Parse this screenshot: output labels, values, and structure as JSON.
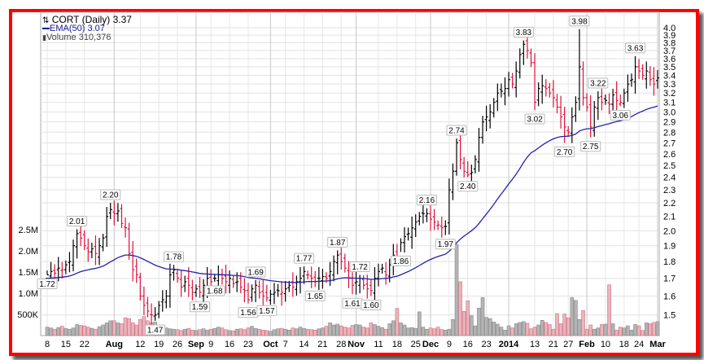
{
  "legend": {
    "symbol_line": "CORT (Daily) 3.37",
    "ema_line": "EMA(50) 3.07",
    "volume_line": "Volume 310,376"
  },
  "colors": {
    "up": "#000000",
    "down": "#e0103c",
    "ema": "#2222aa",
    "vol_up": "#b4b4b4",
    "vol_down": "#eab4bc",
    "border": "#ff0000"
  },
  "chart_data": {
    "type": "ohlc",
    "title": "CORT (Daily) 3.37",
    "price_scale": "log",
    "ylim": [
      1.4,
      4.1
    ],
    "price_ticks": [
      "4.0",
      "3.9",
      "3.8",
      "3.7",
      "3.6",
      "3.5",
      "3.4",
      "3.3",
      "3.2",
      "3.1",
      "3.0",
      "2.9",
      "2.8",
      "2.7",
      "2.6",
      "2.5",
      "2.4",
      "2.3",
      "2.2",
      "2.1",
      "2.0",
      "1.9",
      "1.8",
      "1.7",
      "1.6",
      "1.5"
    ],
    "volume_ticks": [
      {
        "label": "500K",
        "v": 500
      },
      {
        "label": "1.0M",
        "v": 1000
      },
      {
        "label": "1.5M",
        "v": 1500
      },
      {
        "label": "2.0M",
        "v": 2000
      },
      {
        "label": "2.5M",
        "v": 2500
      }
    ],
    "x_ticks": [
      {
        "i": 0,
        "label": "8"
      },
      {
        "i": 5,
        "label": "15"
      },
      {
        "i": 10,
        "label": "22"
      },
      {
        "i": 18,
        "label": "Aug",
        "bold": true
      },
      {
        "i": 25,
        "label": "12"
      },
      {
        "i": 30,
        "label": "19"
      },
      {
        "i": 35,
        "label": "26"
      },
      {
        "i": 40,
        "label": "Sep",
        "bold": true
      },
      {
        "i": 44,
        "label": "9"
      },
      {
        "i": 49,
        "label": "16"
      },
      {
        "i": 54,
        "label": "23"
      },
      {
        "i": 60,
        "label": "Oct",
        "bold": true
      },
      {
        "i": 64,
        "label": "7"
      },
      {
        "i": 69,
        "label": "14"
      },
      {
        "i": 74,
        "label": "21"
      },
      {
        "i": 79,
        "label": "28"
      },
      {
        "i": 83,
        "label": "Nov",
        "bold": true
      },
      {
        "i": 89,
        "label": "11"
      },
      {
        "i": 94,
        "label": "18"
      },
      {
        "i": 99,
        "label": "25"
      },
      {
        "i": 103,
        "label": "Dec",
        "bold": true
      },
      {
        "i": 108,
        "label": "9"
      },
      {
        "i": 113,
        "label": "16"
      },
      {
        "i": 118,
        "label": "23"
      },
      {
        "i": 124,
        "label": "2014",
        "bold": true
      },
      {
        "i": 131,
        "label": "13"
      },
      {
        "i": 136,
        "label": "21"
      },
      {
        "i": 140,
        "label": "27"
      },
      {
        "i": 145,
        "label": "Feb",
        "bold": true
      },
      {
        "i": 150,
        "label": "10"
      },
      {
        "i": 155,
        "label": "18"
      },
      {
        "i": 159,
        "label": "24"
      },
      {
        "i": 164,
        "label": "Mar",
        "bold": true
      }
    ],
    "close": [
      1.72,
      1.74,
      1.73,
      1.76,
      1.75,
      1.78,
      1.8,
      1.9,
      1.98,
      1.95,
      1.9,
      1.86,
      1.88,
      1.85,
      1.9,
      1.95,
      2.1,
      2.15,
      2.12,
      2.14,
      2.05,
      2.02,
      1.85,
      1.75,
      1.72,
      1.6,
      1.55,
      1.52,
      1.5,
      1.5,
      1.55,
      1.58,
      1.6,
      1.72,
      1.75,
      1.7,
      1.65,
      1.68,
      1.66,
      1.62,
      1.64,
      1.62,
      1.66,
      1.7,
      1.68,
      1.7,
      1.72,
      1.7,
      1.68,
      1.7,
      1.67,
      1.68,
      1.65,
      1.63,
      1.58,
      1.64,
      1.66,
      1.62,
      1.6,
      1.59,
      1.61,
      1.62,
      1.63,
      1.62,
      1.64,
      1.66,
      1.65,
      1.68,
      1.7,
      1.74,
      1.72,
      1.7,
      1.68,
      1.7,
      1.71,
      1.7,
      1.74,
      1.8,
      1.84,
      1.8,
      1.76,
      1.7,
      1.66,
      1.68,
      1.7,
      1.66,
      1.64,
      1.63,
      1.7,
      1.74,
      1.76,
      1.72,
      1.78,
      1.84,
      1.82,
      1.92,
      1.96,
      1.98,
      2.02,
      2.06,
      2.1,
      2.12,
      2.12,
      2.08,
      2.06,
      2.04,
      2.02,
      2.03,
      2.3,
      2.45,
      2.7,
      2.55,
      2.45,
      2.42,
      2.44,
      2.55,
      2.75,
      2.9,
      2.95,
      3.0,
      3.1,
      3.2,
      3.22,
      3.25,
      3.35,
      3.3,
      3.45,
      3.65,
      3.78,
      3.7,
      3.55,
      3.1,
      3.25,
      3.28,
      3.25,
      3.2,
      3.15,
      3.05,
      2.95,
      2.85,
      2.8,
      2.95,
      3.1,
      3.5,
      3.15,
      3.05,
      2.85,
      3.05,
      3.15,
      3.1,
      3.12,
      3.08,
      3.18,
      3.12,
      3.1,
      3.2,
      3.3,
      3.35,
      3.5,
      3.45,
      3.4,
      3.45,
      3.35,
      3.3,
      3.37
    ],
    "volume_k": [
      200,
      180,
      150,
      190,
      220,
      170,
      150,
      180,
      260,
      240,
      230,
      200,
      170,
      150,
      210,
      250,
      300,
      350,
      350,
      300,
      280,
      420,
      400,
      300,
      250,
      380,
      450,
      350,
      300,
      320,
      250,
      200,
      180,
      160,
      150,
      140,
      120,
      150,
      170,
      130,
      120,
      140,
      160,
      130,
      150,
      170,
      200,
      180,
      140,
      120,
      110,
      150,
      160,
      140,
      180,
      220,
      170,
      150,
      130,
      120,
      100,
      140,
      160,
      170,
      150,
      130,
      180,
      160,
      200,
      170,
      150,
      140,
      130,
      160,
      180,
      220,
      300,
      250,
      270,
      230,
      200,
      180,
      240,
      260,
      250,
      200,
      180,
      300,
      260,
      220,
      190,
      150,
      280,
      350,
      640,
      300,
      250,
      180,
      190,
      170,
      560,
      200,
      150,
      180,
      160,
      200,
      140,
      130,
      150,
      380,
      2150,
      1270,
      570,
      820,
      470,
      230,
      650,
      900,
      430,
      400,
      320,
      270,
      200,
      130,
      230,
      180,
      280,
      310,
      330,
      290,
      160,
      200,
      250,
      360,
      310,
      260,
      150,
      520,
      280,
      510,
      420,
      900,
      830,
      380,
      590,
      150,
      250,
      150,
      180,
      260,
      270,
      1200,
      280,
      130,
      200,
      180,
      230,
      130,
      260,
      230,
      120,
      300,
      280,
      310,
      330
    ],
    "ema_period": 50,
    "annotations": [
      {
        "i": 0,
        "text": "1.72",
        "pos": "below"
      },
      {
        "i": 8,
        "text": "2.01",
        "pos": "above"
      },
      {
        "i": 17,
        "text": "2.20",
        "pos": "above"
      },
      {
        "i": 29,
        "text": "1.47",
        "pos": "below"
      },
      {
        "i": 34,
        "text": "1.78",
        "pos": "above"
      },
      {
        "i": 41,
        "text": "1.59",
        "pos": "below"
      },
      {
        "i": 45,
        "text": "1.68",
        "pos": "below"
      },
      {
        "i": 54,
        "text": "1.56",
        "pos": "below"
      },
      {
        "i": 56,
        "text": "1.69",
        "pos": "above"
      },
      {
        "i": 59,
        "text": "1.57",
        "pos": "below"
      },
      {
        "i": 69,
        "text": "1.77",
        "pos": "above"
      },
      {
        "i": 72,
        "text": "1.65",
        "pos": "below"
      },
      {
        "i": 78,
        "text": "1.87",
        "pos": "above"
      },
      {
        "i": 82,
        "text": "1.61",
        "pos": "below"
      },
      {
        "i": 84,
        "text": "1.72",
        "pos": "above"
      },
      {
        "i": 87,
        "text": "1.60",
        "pos": "below"
      },
      {
        "i": 95,
        "text": "1.86",
        "pos": "below"
      },
      {
        "i": 102,
        "text": "2.16",
        "pos": "above"
      },
      {
        "i": 107,
        "text": "1.97",
        "pos": "below"
      },
      {
        "i": 110,
        "text": "2.74",
        "pos": "above"
      },
      {
        "i": 113,
        "text": "2.40",
        "pos": "below"
      },
      {
        "i": 128,
        "text": "3.83",
        "pos": "above"
      },
      {
        "i": 131,
        "text": "3.02",
        "pos": "below"
      },
      {
        "i": 139,
        "text": "2.70",
        "pos": "below"
      },
      {
        "i": 143,
        "text": "3.98",
        "pos": "above"
      },
      {
        "i": 146,
        "text": "2.75",
        "pos": "below"
      },
      {
        "i": 148,
        "text": "3.22",
        "pos": "above"
      },
      {
        "i": 154,
        "text": "3.06",
        "pos": "below"
      },
      {
        "i": 158,
        "text": "3.63",
        "pos": "above"
      }
    ]
  }
}
